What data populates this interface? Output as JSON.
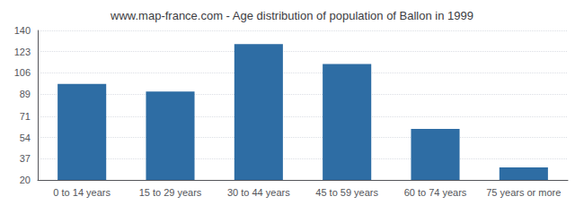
{
  "chart_data": {
    "type": "bar",
    "title": "www.map-france.com - Age distribution of population of Ballon in 1999",
    "categories": [
      "0 to 14 years",
      "15 to 29 years",
      "30 to 44 years",
      "45 to 59 years",
      "60 to 74 years",
      "75 years or more"
    ],
    "values": [
      97,
      91,
      129,
      113,
      61,
      30
    ],
    "color": "#2e6da4",
    "ylim": [
      20,
      140
    ],
    "yticks": [
      20,
      37,
      54,
      71,
      89,
      106,
      123,
      140
    ],
    "grid": true
  }
}
